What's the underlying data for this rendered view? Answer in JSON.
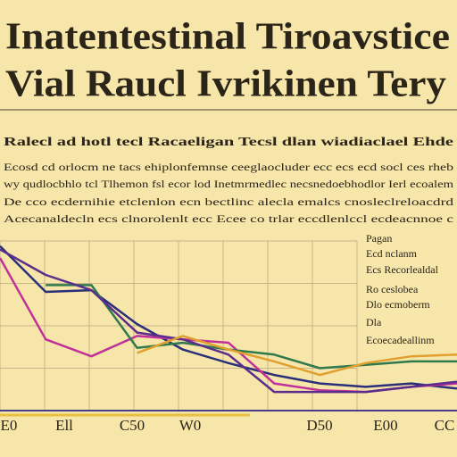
{
  "chart_data": {
    "type": "line",
    "title": [
      "Inatentestinal Tiroavstice",
      "Vial Raucl Ivrikinen Tery"
    ],
    "subtitle": "Ralecl ad hotl tecl Racaeligan Tecsl dlan wiadiaclael Ehde",
    "body": [
      "Ecosd cd orlocm ne tacs ehiplonfemnse ceeglaocluder ecc ecs ecd socl ces rheb",
      "wy qudlocbhlo tcl Tlhemon fsl ecor lod Inetmrmedlec necsnedoebhodlor Ierl ecoalem",
      "De cco ecdernihie etclenlon ecn bectlinc alecla emalcs cnosleclreloacdrd",
      "Acecanaldecln ecs clnorolenlt ecc Ecee co trlar eccdlenlccl ecdeacnnoe c"
    ],
    "legend_text": [
      "Pagan",
      "Ecd nclanm",
      "Ecs Recorlealdal",
      "Ro ceslobea",
      "Dlo ecmoberm",
      "Dla",
      "Ecoecadeallinm"
    ],
    "axis_labels": [
      "E0",
      "Ell",
      "C50",
      "W0",
      "D50",
      "E00",
      "CC"
    ],
    "x": [
      0,
      10,
      20,
      30,
      40,
      50,
      60,
      70,
      80,
      90,
      100
    ],
    "xlim": [
      0,
      100
    ],
    "ylim": [
      0,
      100
    ],
    "grid": true,
    "series": [
      {
        "color": "#2a2f7a",
        "values": [
          97,
          70,
          71,
          51,
          36,
          28,
          21,
          16,
          14,
          16,
          13
        ]
      },
      {
        "color": "#c0309a",
        "values": [
          90,
          42,
          32,
          44,
          42,
          40,
          16,
          12,
          11,
          14,
          16
        ]
      },
      {
        "color": "#2f7a4a",
        "values": [
          null,
          74,
          74,
          37,
          40,
          36,
          33,
          25,
          27,
          29,
          29
        ]
      },
      {
        "color": "#5b2d8c",
        "values": [
          95,
          80,
          71,
          46,
          42,
          33,
          11,
          11,
          11,
          14,
          17
        ]
      },
      {
        "color": "#e0a030",
        "values": [
          null,
          null,
          null,
          34,
          44,
          36,
          29,
          21,
          28,
          32,
          33
        ]
      }
    ]
  }
}
